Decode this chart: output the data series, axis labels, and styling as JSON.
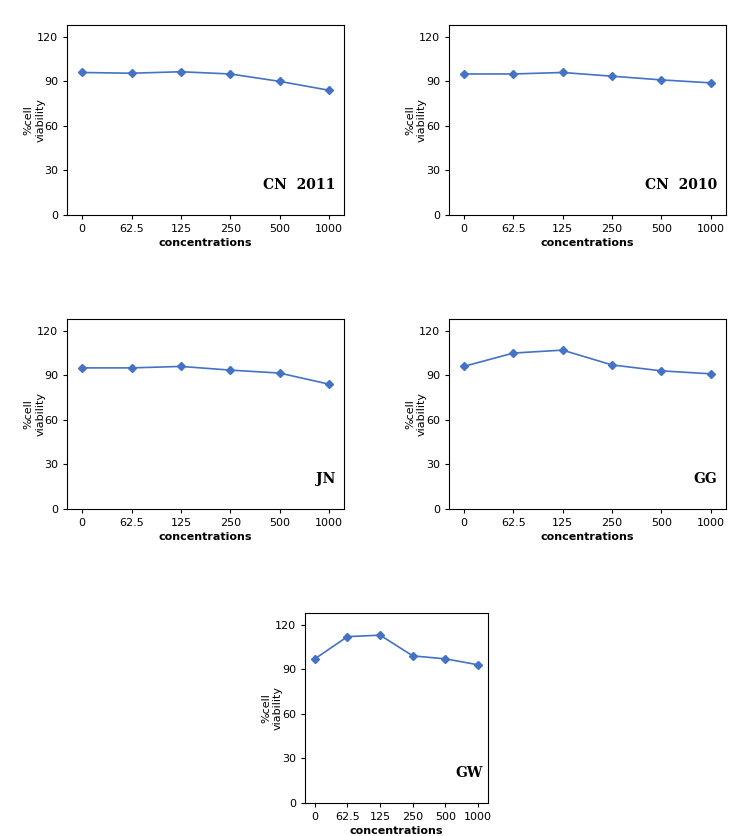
{
  "x_labels": [
    "0",
    "62.5",
    "125",
    "250",
    "500",
    "1000"
  ],
  "plots": [
    {
      "label": "CN  2011",
      "y_values": [
        96,
        95.5,
        96.5,
        95,
        90,
        84
      ]
    },
    {
      "label": "CN  2010",
      "y_values": [
        95,
        95,
        96,
        93.5,
        91,
        89
      ]
    },
    {
      "label": "JN",
      "y_values": [
        95,
        95,
        96,
        93.5,
        91.5,
        84
      ]
    },
    {
      "label": "GG",
      "y_values": [
        96,
        105,
        107,
        97,
        93,
        91
      ]
    },
    {
      "label": "GW",
      "y_values": [
        97,
        112,
        113,
        99,
        97,
        93
      ]
    }
  ],
  "ylabel": "%cell\nviability",
  "xlabel": "concentrations",
  "yticks": [
    0,
    30,
    60,
    90,
    120
  ],
  "ylim": [
    0,
    128
  ],
  "line_color": "#4472C4",
  "marker": "D",
  "marker_size": 4,
  "label_fontsize": 8,
  "tick_fontsize": 8,
  "annotation_fontsize": 10,
  "background_color": "#ffffff"
}
